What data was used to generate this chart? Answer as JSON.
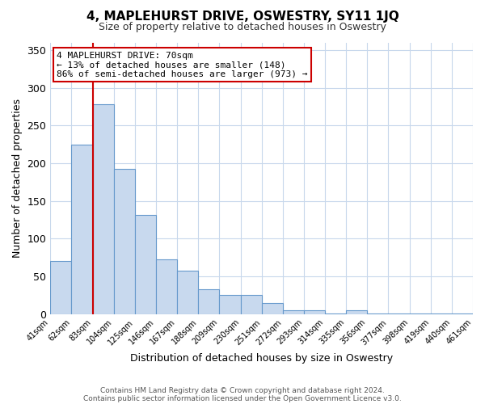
{
  "title": "4, MAPLEHURST DRIVE, OSWESTRY, SY11 1JQ",
  "subtitle": "Size of property relative to detached houses in Oswestry",
  "xlabel": "Distribution of detached houses by size in Oswestry",
  "ylabel": "Number of detached properties",
  "bar_values": [
    70,
    225,
    278,
    193,
    131,
    73,
    58,
    33,
    25,
    25,
    15,
    5,
    5,
    1,
    5,
    1,
    1,
    1,
    1,
    1
  ],
  "bar_labels": [
    "41sqm",
    "62sqm",
    "83sqm",
    "104sqm",
    "125sqm",
    "146sqm",
    "167sqm",
    "188sqm",
    "209sqm",
    "230sqm",
    "251sqm",
    "272sqm",
    "293sqm",
    "314sqm",
    "335sqm",
    "356sqm",
    "377sqm",
    "398sqm",
    "419sqm",
    "440sqm",
    "461sqm"
  ],
  "bar_color": "#c8d9ee",
  "bar_edge_color": "#6699cc",
  "red_line_x": 1.5,
  "ylim": [
    0,
    360
  ],
  "yticks": [
    0,
    50,
    100,
    150,
    200,
    250,
    300,
    350
  ],
  "annotation_title": "4 MAPLEHURST DRIVE: 70sqm",
  "annotation_line1": "← 13% of detached houses are smaller (148)",
  "annotation_line2": "86% of semi-detached houses are larger (973) →",
  "annotation_box_edge": "#cc0000",
  "footnote1": "Contains HM Land Registry data © Crown copyright and database right 2024.",
  "footnote2": "Contains public sector information licensed under the Open Government Licence v3.0.",
  "background_color": "#ffffff",
  "grid_color": "#c8d8ec"
}
